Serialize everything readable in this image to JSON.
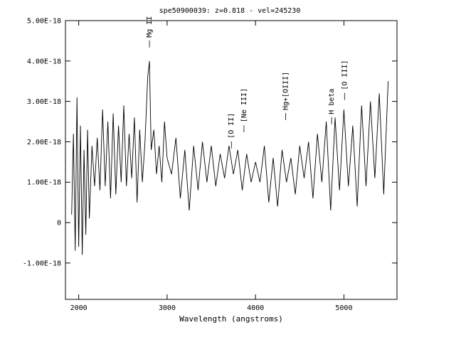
{
  "chart_data": {
    "type": "line",
    "title": "spe50900039: z=0.818 - vel=245230",
    "xlabel": "Wavelength (angstroms)",
    "ylabel": "",
    "xlim": [
      1850,
      5600
    ],
    "ylim": [
      -1.9e-18,
      5e-18
    ],
    "x_ticks": [
      2000,
      3000,
      4000,
      5000
    ],
    "x_tick_labels": [
      "2000",
      "3000",
      "4000",
      "5000"
    ],
    "y_ticks": [
      5e-18,
      4e-18,
      3e-18,
      2e-18,
      1e-18,
      0,
      -1e-18
    ],
    "y_tick_labels": [
      "5.00E-18",
      "4.00E-18",
      "3.00E-18",
      "2.00E-18",
      "1.00E-18",
      "0",
      "-1.00E-18"
    ],
    "grid": false,
    "line_color": "#000000",
    "annotations": [
      {
        "label": "Mg II",
        "x": 2800,
        "y": 4.3e-18
      },
      {
        "label": "[O II]",
        "x": 3727,
        "y": 1.8e-18
      },
      {
        "label": "[Ne III]",
        "x": 3869,
        "y": 2.2e-18
      },
      {
        "label": "Hg+[OIII]",
        "x": 4340,
        "y": 2.5e-18
      },
      {
        "label": "H beta",
        "x": 4861,
        "y": 2.4e-18
      },
      {
        "label": "[O III]",
        "x": 5007,
        "y": 3e-18
      }
    ],
    "series": [
      {
        "x": [
          1920,
          1940,
          1960,
          1980,
          2000,
          2020,
          2040,
          2060,
          2080,
          2100,
          2120,
          2150,
          2180,
          2210,
          2240,
          2270,
          2300,
          2330,
          2360,
          2390,
          2420,
          2450,
          2480,
          2510,
          2540,
          2570,
          2600,
          2630,
          2660,
          2690,
          2720,
          2750,
          2780,
          2800,
          2820,
          2850,
          2880,
          2910,
          2940,
          2970,
          3000,
          3050,
          3100,
          3150,
          3200,
          3250,
          3300,
          3350,
          3400,
          3450,
          3500,
          3550,
          3600,
          3650,
          3700,
          3750,
          3800,
          3850,
          3900,
          3950,
          4000,
          4050,
          4100,
          4150,
          4200,
          4250,
          4300,
          4350,
          4400,
          4450,
          4500,
          4550,
          4600,
          4650,
          4700,
          4750,
          4800,
          4850,
          4900,
          4950,
          5000,
          5050,
          5100,
          5150,
          5200,
          5250,
          5300,
          5350,
          5400,
          5450,
          5500
        ],
        "y": [
          2e-19,
          2.2e-18,
          -7e-19,
          3.1e-18,
          -6e-19,
          2.4e-18,
          -8e-19,
          1.8e-18,
          -3e-19,
          2.3e-18,
          1e-19,
          1.9e-18,
          9e-19,
          2.1e-18,
          8e-19,
          2.8e-18,
          9e-19,
          2.5e-18,
          6e-19,
          2.7e-18,
          7e-19,
          2.4e-18,
          1e-18,
          2.9e-18,
          9e-19,
          2.2e-18,
          1.1e-18,
          2.6e-18,
          5e-19,
          2.3e-18,
          1e-18,
          2e-18,
          3.6e-18,
          4e-18,
          1.8e-18,
          2.3e-18,
          1.2e-18,
          1.9e-18,
          1e-18,
          2.5e-18,
          1.6e-18,
          1.2e-18,
          2.1e-18,
          6e-19,
          1.8e-18,
          3e-19,
          1.9e-18,
          8e-19,
          2e-18,
          1e-18,
          1.9e-18,
          9e-19,
          1.7e-18,
          1.1e-18,
          1.9e-18,
          1.2e-18,
          1.8e-18,
          8e-19,
          1.7e-18,
          1e-18,
          1.5e-18,
          1e-18,
          1.9e-18,
          5e-19,
          1.6e-18,
          4e-19,
          1.8e-18,
          1e-18,
          1.6e-18,
          7e-19,
          1.9e-18,
          1.1e-18,
          2e-18,
          6e-19,
          2.2e-18,
          1e-18,
          2.5e-18,
          3e-19,
          2.6e-18,
          8e-19,
          2.8e-18,
          9e-19,
          2.4e-18,
          4e-19,
          2.9e-18,
          9e-19,
          3e-18,
          1.1e-18,
          3.2e-18,
          7e-19,
          3.5e-18
        ]
      }
    ]
  }
}
